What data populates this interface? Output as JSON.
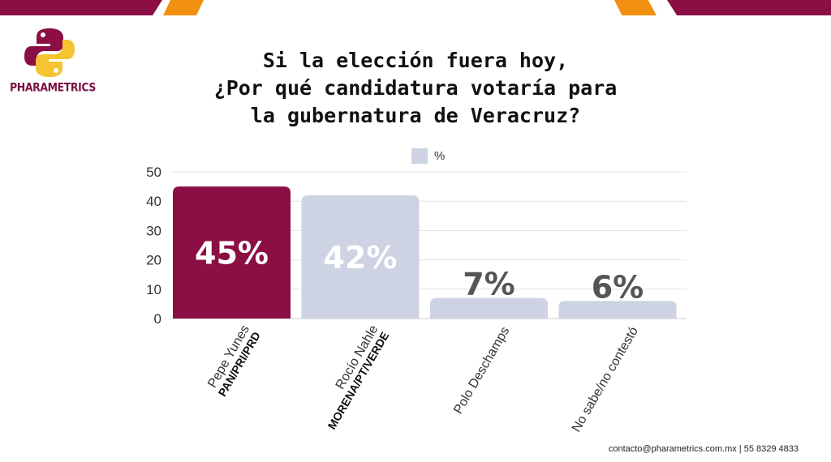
{
  "brand": {
    "name": "PHARAMETRICS",
    "colors": {
      "primary": "#8b0f45",
      "accent": "#f29111",
      "logo_yellow": "#f5c431"
    }
  },
  "header": {
    "title_lines": [
      "Si la elección fuera hoy,",
      "¿Por qué candidatura votaría para",
      "la gubernatura de Veracruz?"
    ]
  },
  "legend": {
    "label": "%",
    "color": "#cdd3e2"
  },
  "chart_data": {
    "type": "bar",
    "title": "Si la elección fuera hoy, ¿Por qué candidatura votaría para la gubernatura de Veracruz?",
    "categories": [
      {
        "name": "Pepe Yunes",
        "party": "PAN/PRI/PRD"
      },
      {
        "name": "Rocío Nahle",
        "party": "MORENA/PT/VERDE"
      },
      {
        "name": "Polo Deschamps",
        "party": ""
      },
      {
        "name": "No sabe/no contestó",
        "party": ""
      }
    ],
    "series": [
      {
        "name": "%",
        "values": [
          45,
          42,
          7,
          6
        ]
      }
    ],
    "data_labels": [
      "45%",
      "42%",
      "7%",
      "6%"
    ],
    "bar_colors": [
      "#8b0f45",
      "#cdd3e2",
      "#cdd3e2",
      "#cdd3e2"
    ],
    "label_colors": [
      "#ffffff",
      "#ffffff",
      "#555555",
      "#555555"
    ],
    "label_inside": [
      true,
      true,
      false,
      false
    ],
    "ylim": [
      0,
      50
    ],
    "yticks": [
      0,
      10,
      20,
      30,
      40,
      50
    ],
    "grid": true,
    "legend_position": "top-center",
    "xlabel": "",
    "ylabel": ""
  },
  "footer": {
    "contact": "contacto@pharametrics.com.mx |  55 8329 4833"
  }
}
